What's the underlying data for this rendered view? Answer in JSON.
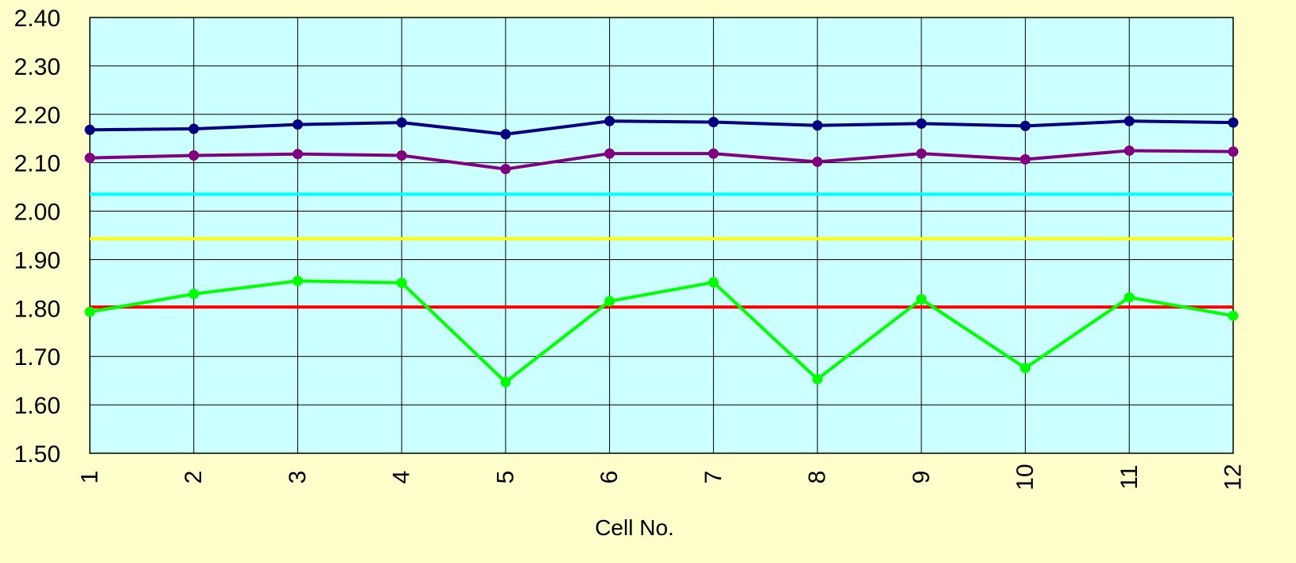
{
  "chart_data": {
    "type": "line",
    "title": "",
    "xlabel": "Cell No.",
    "ylabel": "",
    "ylim": [
      1.5,
      2.4
    ],
    "y_ticks": [
      "1.50",
      "1.60",
      "1.70",
      "1.80",
      "1.90",
      "2.00",
      "2.10",
      "2.20",
      "2.30",
      "2.40"
    ],
    "categories": [
      "1",
      "2",
      "3",
      "4",
      "5",
      "6",
      "7",
      "8",
      "9",
      "10",
      "11",
      "12"
    ],
    "grid": true,
    "legend": "none",
    "plot_background": "#ccffff",
    "page_background": "#ffffcc",
    "series": [
      {
        "color": "#000080",
        "marker": true,
        "values": [
          2.168,
          2.17,
          2.179,
          2.183,
          2.159,
          2.186,
          2.184,
          2.177,
          2.181,
          2.176,
          2.186,
          2.183
        ]
      },
      {
        "color": "#800080",
        "marker": true,
        "values": [
          2.11,
          2.115,
          2.118,
          2.115,
          2.087,
          2.119,
          2.119,
          2.102,
          2.119,
          2.107,
          2.125,
          2.123
        ]
      },
      {
        "color": "#00ff00",
        "marker": true,
        "values": [
          1.792,
          1.829,
          1.856,
          1.852,
          1.647,
          1.814,
          1.853,
          1.653,
          1.818,
          1.676,
          1.822,
          1.784
        ]
      }
    ],
    "reference_lines": [
      {
        "color": "#00ffff",
        "value": 2.035
      },
      {
        "color": "#ffff00",
        "value": 1.943
      },
      {
        "color": "#ff0000",
        "value": 1.802
      }
    ]
  }
}
